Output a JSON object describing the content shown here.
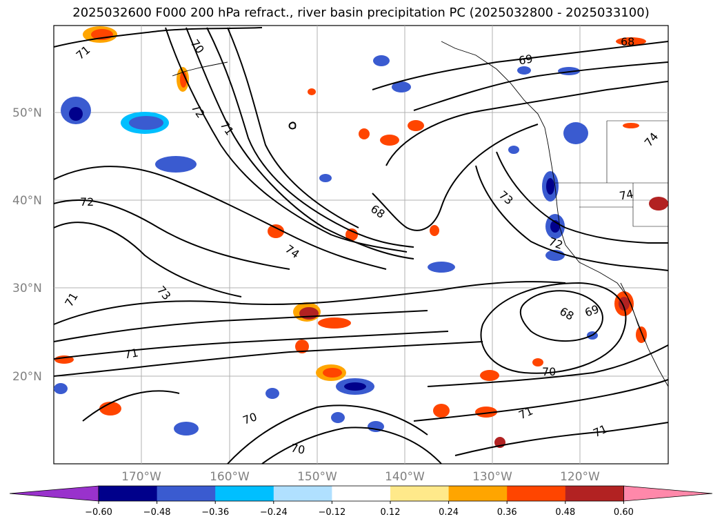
{
  "title": "2025032600 F000 200 hPa refract., river basin precipitation PC (2025032800 - 2025033100)",
  "latitude_labels": [
    "50°N",
    "40°N",
    "30°N",
    "20°N"
  ],
  "longitude_labels": [
    "170°W",
    "160°W",
    "150°W",
    "140°W",
    "130°W",
    "120°W"
  ],
  "contour_labels": [
    "71",
    "70",
    "72",
    "71",
    "68",
    "69",
    "68",
    "72",
    "74",
    "73",
    "72",
    "74",
    "71",
    "73",
    "71",
    "68",
    "69",
    "70",
    "70",
    "71",
    "71",
    "70",
    "74"
  ],
  "colorbar": {
    "ticks": [
      "−0.60",
      "−0.48",
      "−0.36",
      "−0.24",
      "−0.12",
      "0.12",
      "0.24",
      "0.36",
      "0.48",
      "0.60"
    ],
    "colors": [
      "#9932cc",
      "#00008b",
      "#3a5bd0",
      "#00bfff",
      "#b0e0ff",
      "#ffffff",
      "#ffe98a",
      "#ffa500",
      "#ff4500",
      "#b22222",
      "#ff88aa"
    ]
  },
  "chart_data": {
    "type": "heatmap",
    "title": "2025032600 F000 200 hPa refract., river basin precipitation PC (2025032800 - 2025033100)",
    "contour_field": "200 hPa refractivity",
    "shaded_field": "river basin precipitation PC",
    "contour_levels": [
      68,
      69,
      70,
      71,
      72,
      73,
      74
    ],
    "shading_bounds": [
      -0.6,
      -0.48,
      -0.36,
      -0.24,
      -0.12,
      0.12,
      0.24,
      0.36,
      0.48,
      0.6
    ],
    "lon_ticks": [
      -170,
      -160,
      -150,
      -140,
      -130,
      -120
    ],
    "lat_ticks": [
      20,
      30,
      40,
      50
    ],
    "grid": true
  }
}
